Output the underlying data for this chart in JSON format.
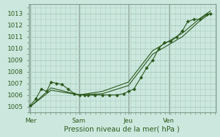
{
  "title": "",
  "xlabel": "Pression niveau de la mer( hPa )",
  "ylabel": "",
  "bg_color": "#cce8de",
  "grid_color": "#aaccbe",
  "line_color": "#2d5a1e",
  "marker_color": "#2d5a1e",
  "ylim": [
    1004.5,
    1013.8
  ],
  "yticks": [
    1005,
    1006,
    1007,
    1008,
    1009,
    1010,
    1011,
    1012,
    1013
  ],
  "day_positions": [
    0.0,
    0.27,
    0.545,
    0.77
  ],
  "day_labels": [
    "Mer",
    "Sam",
    "Jeu",
    "Ven"
  ],
  "series1_x": [
    0.0,
    0.03,
    0.06,
    0.09,
    0.115,
    0.145,
    0.175,
    0.21,
    0.245,
    0.275,
    0.3,
    0.32,
    0.36,
    0.4,
    0.44,
    0.48,
    0.52,
    0.545,
    0.575,
    0.615,
    0.645,
    0.68,
    0.715,
    0.745,
    0.78,
    0.815,
    0.845,
    0.875,
    0.91,
    0.945,
    0.98,
    1.0
  ],
  "series1_y": [
    1005.1,
    1005.65,
    1006.5,
    1006.3,
    1007.1,
    1007.0,
    1006.9,
    1006.5,
    1006.1,
    1006.0,
    1006.0,
    1005.95,
    1006.0,
    1006.0,
    1006.0,
    1006.0,
    1006.1,
    1006.3,
    1006.5,
    1007.5,
    1008.3,
    1009.0,
    1010.0,
    1010.5,
    1010.6,
    1011.0,
    1011.5,
    1012.3,
    1012.5,
    1012.5,
    1012.9,
    1013.0
  ],
  "series2_x": [
    0.0,
    0.115,
    0.27,
    0.4,
    0.545,
    0.68,
    0.845,
    0.945,
    1.0
  ],
  "series2_y": [
    1005.0,
    1006.4,
    1006.0,
    1006.1,
    1006.8,
    1009.5,
    1011.0,
    1012.4,
    1013.0
  ],
  "series3_x": [
    0.0,
    0.115,
    0.27,
    0.4,
    0.545,
    0.68,
    0.845,
    0.945,
    1.0
  ],
  "series3_y": [
    1005.0,
    1006.6,
    1006.0,
    1006.3,
    1007.1,
    1009.8,
    1011.3,
    1012.6,
    1013.2
  ],
  "xlim": [
    -0.01,
    1.03
  ]
}
